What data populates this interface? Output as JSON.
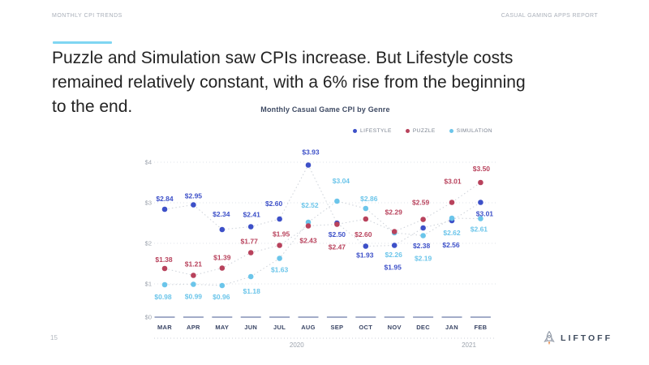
{
  "slide": {
    "eyebrow": "MONTHLY CPI TRENDS",
    "report": "CASUAL GAMING APPS REPORT",
    "headline": "Puzzle and Simulation saw CPIs increase. But Lifestyle costs\nremained relatively constant, with a 6% rise from the beginning\nto the end.",
    "page_number": "15",
    "brand": "LIFTOFF"
  },
  "colors": {
    "accent_bar": "#7FD6F2",
    "brand_text": "#3E4B5D",
    "rocket_flame": "#E8823C",
    "gridline": "#DFE3E8",
    "series_line": "#CDD2D9",
    "axis_tick": "#6C7BA8",
    "month_label": "#3A4565",
    "y_label": "#9CA3AD"
  },
  "chart_data": {
    "type": "line",
    "title": "Monthly Casual Game CPI by Genre",
    "categories": [
      "MAR",
      "APR",
      "MAY",
      "JUN",
      "JUL",
      "AUG",
      "SEP",
      "OCT",
      "NOV",
      "DEC",
      "JAN",
      "FEB"
    ],
    "year_groups": [
      {
        "label": "2020",
        "from": 0,
        "to": 9
      },
      {
        "label": "2021",
        "from": 10,
        "to": 11
      }
    ],
    "y_ticks": [
      "$0",
      "$1",
      "$2",
      "$3",
      "$4"
    ],
    "ylim": [
      0,
      4
    ],
    "grid": "dotted-horizontal",
    "line_style": "dotted-gray",
    "legend_position": "top-right",
    "series": [
      {
        "name": "LIFESTYLE",
        "color": "#3D50C8",
        "values": [
          2.84,
          2.95,
          2.34,
          2.41,
          2.6,
          3.93,
          2.5,
          1.93,
          1.95,
          2.38,
          2.56,
          3.01
        ],
        "point_labels": [
          "$2.84",
          "$2.95",
          "$2.34",
          "$2.41",
          "$2.60",
          "$3.93",
          "$2.50",
          "$1.93",
          "$1.95",
          "$2.38",
          "$2.56",
          "$3.01"
        ],
        "label_offsets": [
          [
            0,
            -13
          ],
          [
            0,
            -11
          ],
          [
            -1,
            -19
          ],
          [
            1,
            -15
          ],
          [
            -7,
            -19
          ],
          [
            3,
            -16
          ],
          [
            0,
            14
          ],
          [
            -1,
            11
          ],
          [
            -2,
            27
          ],
          [
            -2,
            22
          ],
          [
            -1,
            30
          ],
          [
            5,
            14
          ]
        ]
      },
      {
        "name": "PUZZLE",
        "color": "#B8425C",
        "values": [
          1.38,
          1.21,
          1.39,
          1.77,
          1.95,
          2.43,
          2.47,
          2.6,
          2.29,
          2.59,
          3.01,
          3.5
        ],
        "point_labels": [
          "$1.38",
          "$1.21",
          "$1.39",
          "$1.77",
          "$1.95",
          "$2.43",
          "$2.47",
          "$2.60",
          "$2.29",
          "$2.59",
          "$3.01",
          "$3.50"
        ],
        "label_offsets": [
          [
            -1,
            -11
          ],
          [
            0,
            -14
          ],
          [
            0,
            -13
          ],
          [
            -2,
            -14
          ],
          [
            2,
            -14
          ],
          [
            0,
            18
          ],
          [
            0,
            28
          ],
          [
            -3,
            19
          ],
          [
            -1,
            -24
          ],
          [
            -3,
            -21
          ],
          [
            1,
            -26
          ],
          [
            1,
            -17
          ]
        ]
      },
      {
        "name": "SIMULATION",
        "color": "#6BC5EA",
        "values": [
          0.98,
          0.99,
          0.96,
          1.18,
          1.63,
          2.52,
          3.04,
          2.86,
          2.26,
          2.19,
          2.62,
          2.61
        ],
        "point_labels": [
          "$0.98",
          "$0.99",
          "$0.96",
          "$1.18",
          "$1.63",
          "$2.52",
          "$3.04",
          "$2.86",
          "$2.26",
          "$2.19",
          "$2.62",
          "$2.61"
        ],
        "label_offsets": [
          [
            -2,
            15
          ],
          [
            0,
            15
          ],
          [
            -1,
            14
          ],
          [
            1,
            18
          ],
          [
            0,
            14
          ],
          [
            2,
            -21
          ],
          [
            5,
            -25
          ],
          [
            4,
            -12
          ],
          [
            -1,
            27
          ],
          [
            0,
            28
          ],
          [
            0,
            18
          ],
          [
            -2,
            13
          ]
        ]
      }
    ]
  }
}
